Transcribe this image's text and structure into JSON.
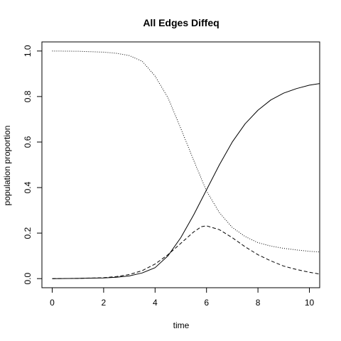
{
  "chart_data": {
    "type": "line",
    "title": "All Edges Diffeq",
    "xlabel": "time",
    "ylabel": "population proportion",
    "xlim": [
      -0.4,
      10.4
    ],
    "ylim": [
      -0.04,
      1.04
    ],
    "x_ticks": [
      "0",
      "2",
      "4",
      "6",
      "8",
      "10"
    ],
    "y_ticks": [
      "0.0",
      "0.2",
      "0.4",
      "0.6",
      "0.8",
      "1.0"
    ],
    "grid": false,
    "legend": "none",
    "series": [
      {
        "line_style": "solid",
        "x": [
          0,
          1,
          2,
          2.5,
          3,
          3.5,
          4,
          4.5,
          5,
          5.5,
          6,
          6.5,
          7,
          7.5,
          8,
          8.5,
          9,
          9.5,
          10,
          10.4
        ],
        "y": [
          0.0,
          0.001,
          0.003,
          0.006,
          0.012,
          0.025,
          0.048,
          0.1,
          0.18,
          0.28,
          0.39,
          0.5,
          0.6,
          0.68,
          0.74,
          0.785,
          0.815,
          0.835,
          0.85,
          0.857
        ]
      },
      {
        "line_style": "dashed",
        "x": [
          0,
          1,
          2,
          2.5,
          3,
          3.5,
          4,
          4.5,
          5,
          5.5,
          5.8,
          6,
          6.5,
          7,
          7.5,
          8,
          8.5,
          9,
          9.5,
          10,
          10.4
        ],
        "y": [
          0.0,
          0.001,
          0.004,
          0.009,
          0.018,
          0.035,
          0.064,
          0.105,
          0.155,
          0.205,
          0.228,
          0.232,
          0.215,
          0.18,
          0.14,
          0.105,
          0.078,
          0.055,
          0.04,
          0.028,
          0.02
        ]
      },
      {
        "line_style": "dotted",
        "x": [
          0,
          1,
          2,
          2.5,
          3,
          3.5,
          4,
          4.5,
          5,
          5.5,
          6,
          6.5,
          7,
          7.5,
          8,
          8.5,
          9,
          9.5,
          10,
          10.4
        ],
        "y": [
          1.0,
          0.999,
          0.995,
          0.99,
          0.98,
          0.955,
          0.89,
          0.795,
          0.66,
          0.52,
          0.385,
          0.29,
          0.225,
          0.185,
          0.158,
          0.143,
          0.133,
          0.126,
          0.12,
          0.117
        ]
      }
    ]
  }
}
